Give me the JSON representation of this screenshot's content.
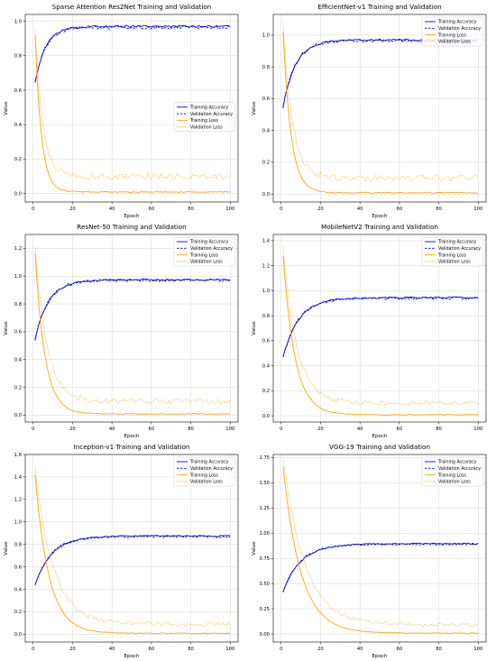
{
  "chart_data": [
    {
      "type": "line",
      "title": "Sparse Attention Res2Net Training and Validation",
      "xlabel": "Epoch",
      "ylabel": "Value",
      "xlim": [
        -4,
        104
      ],
      "ylim": [
        -0.05,
        1.04
      ],
      "xticks": [
        0,
        20,
        40,
        60,
        80,
        100
      ],
      "yticks": [
        0.0,
        0.2,
        0.4,
        0.6,
        0.8,
        1.0
      ],
      "grid": true,
      "legend": "center-right",
      "curves": {
        "acc_start": 0.65,
        "acc_end": 0.97,
        "acc_tau": 5.5,
        "loss_start": 0.92,
        "loss_end": 0.005,
        "loss_tau": 3.2,
        "val_loss_end": 0.1,
        "val_loss_tau": 3.8,
        "noise": 0.012
      },
      "series": [
        {
          "name": "Training Accuracy",
          "color": "#0000ff",
          "style": "solid"
        },
        {
          "name": "Validation Accuracy",
          "color": "#0000ff",
          "style": "dashed"
        },
        {
          "name": "Training Loss",
          "color": "#ffa500",
          "style": "solid"
        },
        {
          "name": "Validation Loss",
          "color": "#ffa500",
          "style": "dotted"
        }
      ]
    },
    {
      "type": "line",
      "title": "EfficientNet-v1 Training and Validation",
      "xlabel": "Epoch",
      "ylabel": "Value",
      "xlim": [
        -4,
        104
      ],
      "ylim": [
        -0.05,
        1.13
      ],
      "xticks": [
        0,
        20,
        40,
        60,
        80,
        100
      ],
      "yticks": [
        0.0,
        0.2,
        0.4,
        0.6,
        0.8,
        1.0
      ],
      "grid": true,
      "legend": "top-right",
      "curves": {
        "acc_start": 0.55,
        "acc_end": 0.97,
        "acc_tau": 6.5,
        "loss_start": 1.02,
        "loss_end": 0.005,
        "loss_tau": 4.0,
        "val_loss_end": 0.1,
        "val_loss_tau": 4.8,
        "noise": 0.012
      },
      "series": [
        {
          "name": "Training Accuracy",
          "color": "#0000ff",
          "style": "solid"
        },
        {
          "name": "Validation Accuracy",
          "color": "#0000ff",
          "style": "dashed"
        },
        {
          "name": "Training Loss",
          "color": "#ffa500",
          "style": "solid"
        },
        {
          "name": "Validation Loss",
          "color": "#ffa500",
          "style": "dotted"
        }
      ]
    },
    {
      "type": "line",
      "title": "ResNet-50 Training and Validation",
      "xlabel": "Epoch",
      "ylabel": "Value",
      "xlim": [
        -4,
        104
      ],
      "ylim": [
        -0.05,
        1.3
      ],
      "xticks": [
        0,
        20,
        40,
        60,
        80,
        100
      ],
      "yticks": [
        0.0,
        0.2,
        0.4,
        0.6,
        0.8,
        1.0,
        1.2
      ],
      "grid": true,
      "legend": "top-right",
      "curves": {
        "acc_start": 0.55,
        "acc_end": 0.975,
        "acc_tau": 7.0,
        "loss_start": 1.16,
        "loss_end": 0.005,
        "loss_tau": 5.0,
        "val_loss_end": 0.1,
        "val_loss_tau": 6.0,
        "noise": 0.012
      },
      "series": [
        {
          "name": "Training Accuracy",
          "color": "#0000ff",
          "style": "solid"
        },
        {
          "name": "Validation Accuracy",
          "color": "#0000ff",
          "style": "dashed"
        },
        {
          "name": "Training Loss",
          "color": "#ffa500",
          "style": "solid"
        },
        {
          "name": "Validation Loss",
          "color": "#ffa500",
          "style": "dotted"
        }
      ]
    },
    {
      "type": "line",
      "title": "MobileNetV2 Training and Validation",
      "xlabel": "Epoch",
      "ylabel": "Value",
      "xlim": [
        -4,
        104
      ],
      "ylim": [
        -0.05,
        1.45
      ],
      "xticks": [
        0,
        20,
        40,
        60,
        80,
        100
      ],
      "yticks": [
        0.0,
        0.2,
        0.4,
        0.6,
        0.8,
        1.0,
        1.2,
        1.4
      ],
      "grid": true,
      "legend": "top-right",
      "curves": {
        "acc_start": 0.47,
        "acc_end": 0.945,
        "acc_tau": 8.0,
        "loss_start": 1.28,
        "loss_end": 0.005,
        "loss_tau": 6.0,
        "val_loss_end": 0.1,
        "val_loss_tau": 7.0,
        "noise": 0.012
      },
      "series": [
        {
          "name": "Training Accuracy",
          "color": "#0000ff",
          "style": "solid"
        },
        {
          "name": "Validation Accuracy",
          "color": "#0000ff",
          "style": "dashed"
        },
        {
          "name": "Training Loss",
          "color": "#ffa500",
          "style": "solid"
        },
        {
          "name": "Validation Loss",
          "color": "#ffa500",
          "style": "dotted"
        }
      ]
    },
    {
      "type": "line",
      "title": "Inception-v1 Training and Validation",
      "xlabel": "Epoch",
      "ylabel": "Value",
      "xlim": [
        -4,
        104
      ],
      "ylim": [
        -0.07,
        1.6
      ],
      "xticks": [
        0,
        20,
        40,
        60,
        80,
        100
      ],
      "yticks": [
        0.0,
        0.2,
        0.4,
        0.6,
        0.8,
        1.0,
        1.2,
        1.4,
        1.6
      ],
      "grid": true,
      "legend": "top-right",
      "curves": {
        "acc_start": 0.44,
        "acc_end": 0.875,
        "acc_tau": 8.5,
        "loss_start": 1.42,
        "loss_end": 0.005,
        "loss_tau": 7.0,
        "val_loss_end": 0.09,
        "val_loss_tau": 9.0,
        "noise": 0.012
      },
      "series": [
        {
          "name": "Training Accuracy",
          "color": "#0000ff",
          "style": "solid"
        },
        {
          "name": "Validation Accuracy",
          "color": "#0000ff",
          "style": "dashed"
        },
        {
          "name": "Training Loss",
          "color": "#ffa500",
          "style": "solid"
        },
        {
          "name": "Validation Loss",
          "color": "#ffa500",
          "style": "dotted"
        }
      ]
    },
    {
      "type": "line",
      "title": "VGG-19 Training and Validation",
      "xlabel": "Epoch",
      "ylabel": "Value",
      "xlim": [
        -4,
        104
      ],
      "ylim": [
        -0.08,
        1.78
      ],
      "xticks": [
        0,
        20,
        40,
        60,
        80,
        100
      ],
      "yticks": [
        0.0,
        0.25,
        0.5,
        0.75,
        1.0,
        1.25,
        1.5,
        1.75
      ],
      "ytick_labels": [
        "0.00",
        "0.25",
        "0.50",
        "0.75",
        "1.00",
        "1.25",
        "1.50",
        "1.75"
      ],
      "grid": true,
      "legend": "top-right",
      "curves": {
        "acc_start": 0.42,
        "acc_end": 0.895,
        "acc_tau": 9.0,
        "loss_start": 1.66,
        "loss_end": 0.005,
        "loss_tau": 9.0,
        "val_loss_end": 0.09,
        "val_loss_tau": 11.0,
        "noise": 0.012
      },
      "series": [
        {
          "name": "Training Accuracy",
          "color": "#0000ff",
          "style": "solid"
        },
        {
          "name": "Validation Accuracy",
          "color": "#0000ff",
          "style": "dashed"
        },
        {
          "name": "Training Loss",
          "color": "#ffa500",
          "style": "solid"
        },
        {
          "name": "Validation Loss",
          "color": "#ffa500",
          "style": "dotted"
        }
      ]
    }
  ]
}
